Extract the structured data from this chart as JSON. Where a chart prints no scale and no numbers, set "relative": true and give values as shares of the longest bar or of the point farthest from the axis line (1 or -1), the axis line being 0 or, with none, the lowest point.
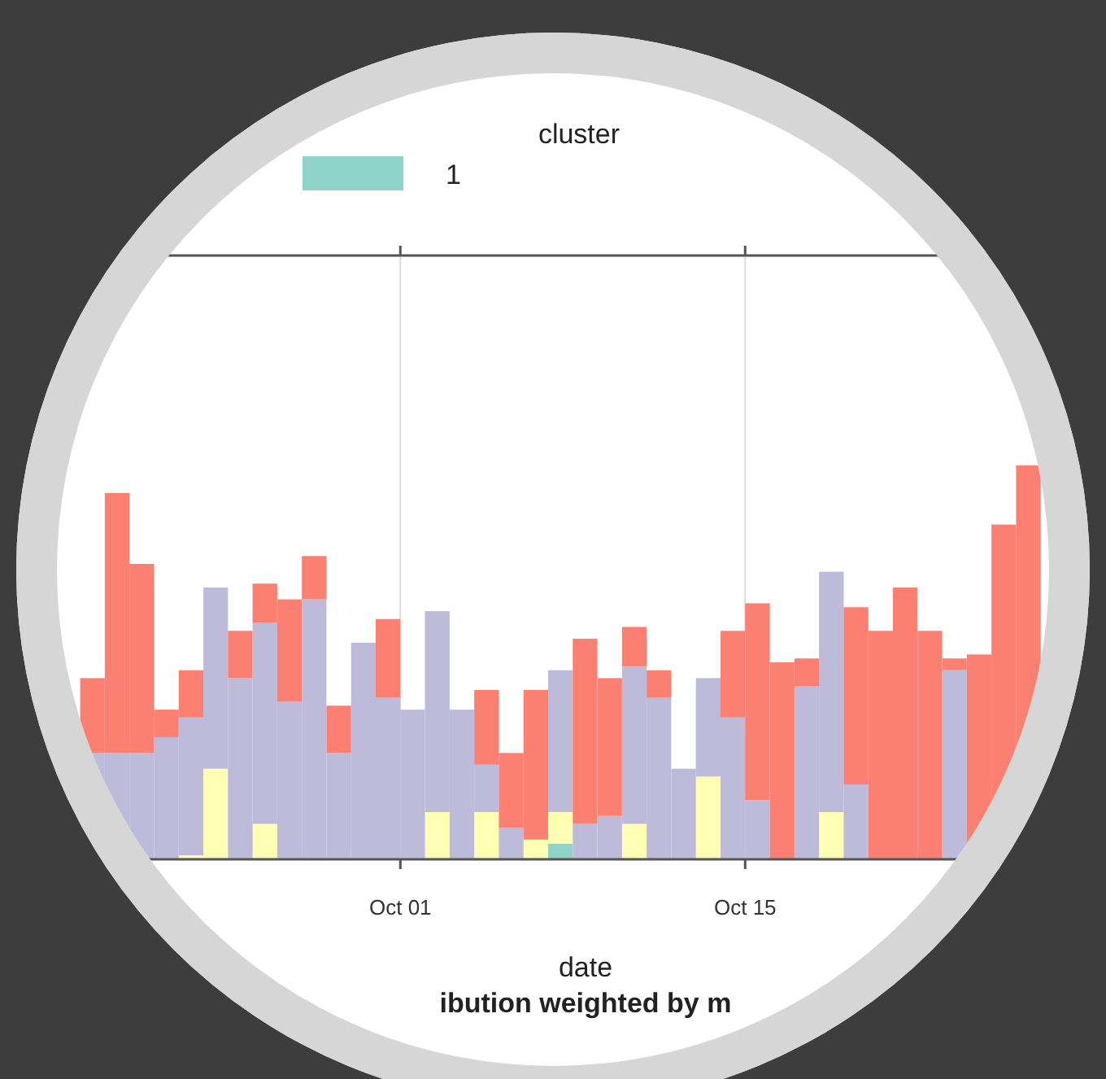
{
  "chart_data": {
    "type": "bar",
    "title": "ibution weighted by m",
    "xlabel": "date",
    "legend_title": "cluster",
    "stacked": true,
    "relative": true,
    "grid": "x",
    "legend": "top",
    "x": [
      "--09-18T12:00",
      "--09-19T12:00",
      "--09-20T12:00",
      "--09-21T12:00",
      "--09-22T12:00",
      "--09-23T12:00",
      "--09-24T12:00",
      "--09-25T12:00",
      "--09-26T12:00",
      "--09-27T12:00",
      "--09-28T12:00",
      "--09-29T12:00",
      "--09-30T12:00",
      "--10-01T12:00",
      "--10-02T12:00",
      "--10-03T12:00",
      "--10-04T12:00",
      "--10-05T12:00",
      "--10-06T12:00",
      "--10-07T12:00",
      "--10-08T12:00",
      "--10-09T12:00",
      "--10-10T12:00",
      "--10-11T12:00",
      "--10-12T12:00",
      "--10-13T12:00",
      "--10-14T12:00",
      "--10-15T12:00",
      "--10-16T12:00",
      "--10-17T12:00",
      "--10-18T12:00",
      "--10-19T12:00",
      "--10-20T12:00",
      "--10-21T12:00",
      "--10-22T12:00",
      "--10-23T12:00",
      "--10-24T12:00",
      "--10-25T12:00",
      "--10-26T12:00"
    ],
    "xlim": [
      "--09-16",
      "--10-28"
    ],
    "xticks": [
      {
        "value": "--10-01",
        "label": "Oct 01"
      },
      {
        "value": "--10-15",
        "label": "Oct 15"
      }
    ],
    "series": [
      {
        "name": "1",
        "color": "#8dd3c7",
        "values": [
          0,
          0,
          0,
          0,
          0,
          0,
          0,
          0,
          0,
          0,
          0,
          0,
          0,
          0,
          0,
          0,
          0,
          0,
          0,
          0.04,
          0,
          0,
          0,
          0,
          0,
          0,
          0,
          0,
          0,
          0,
          0,
          0,
          0,
          0,
          0,
          0,
          0,
          0,
          0
        ]
      },
      {
        "color": "#ffffb3",
        "values": [
          0,
          0,
          0,
          0,
          0.01,
          0.23,
          0,
          0.09,
          0,
          0,
          0,
          0,
          0,
          0,
          0.12,
          0,
          0.12,
          0,
          0.05,
          0.08,
          0,
          0,
          0.09,
          0,
          0,
          0.21,
          0,
          0,
          0,
          0,
          0.12,
          0,
          0,
          0,
          0,
          0,
          0,
          0,
          0
        ]
      },
      {
        "color": "#bebada",
        "values": [
          0.27,
          0.27,
          0.27,
          0.31,
          0.35,
          0.46,
          0.46,
          0.51,
          0.4,
          0.66,
          0.27,
          0.55,
          0.41,
          0.38,
          0.51,
          0.38,
          0.12,
          0.08,
          0,
          0.36,
          0.09,
          0.11,
          0.4,
          0.41,
          0.23,
          0.25,
          0.36,
          0.15,
          0,
          0.44,
          0.61,
          0.19,
          0,
          0,
          0,
          0.48,
          0,
          0,
          0
        ]
      },
      {
        "color": "#fb8072",
        "values": [
          0.19,
          0.66,
          0.48,
          0.07,
          0.12,
          0,
          0.12,
          0.1,
          0.26,
          0.11,
          0.12,
          0,
          0.2,
          0,
          0,
          0,
          0.19,
          0.19,
          0.38,
          0,
          0.47,
          0.35,
          0.1,
          0.07,
          0,
          0,
          0.22,
          0.5,
          0.5,
          0.07,
          0,
          0.45,
          0.58,
          0.69,
          0.58,
          0.03,
          0.52,
          0.85,
          1
        ]
      }
    ]
  }
}
